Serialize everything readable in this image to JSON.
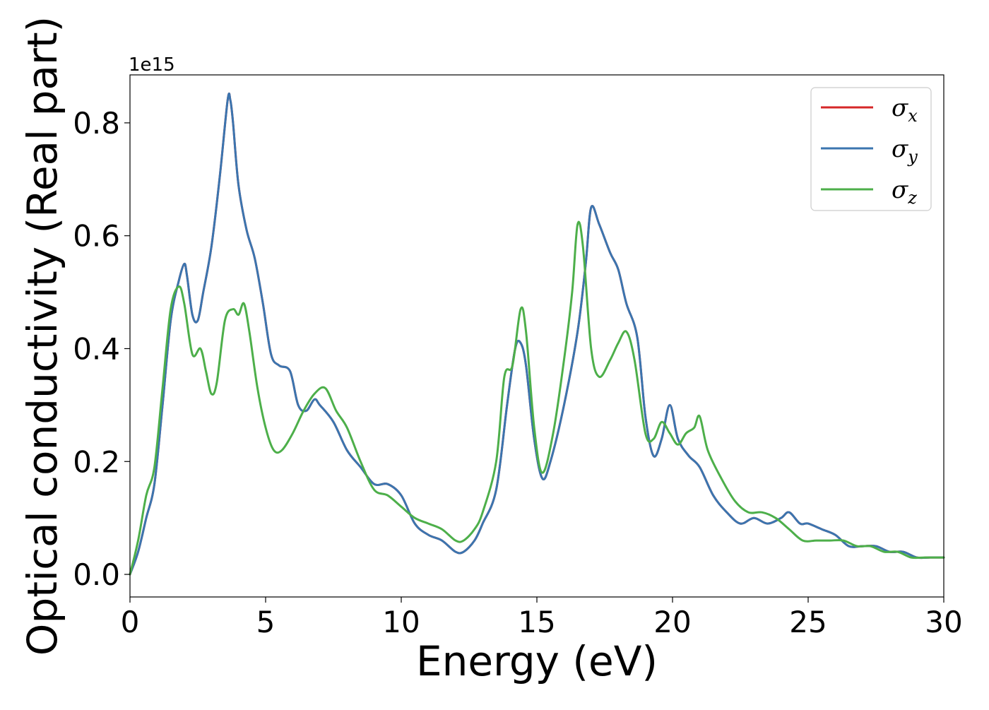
{
  "chart_data": {
    "type": "line",
    "xlabel": "Energy (eV)",
    "ylabel": "Optical conductivity (Real part)",
    "y_offset_text": "1e15",
    "y_multiplier": 1000000000000000.0,
    "xlim": [
      0,
      30
    ],
    "ylim": [
      -0.04,
      0.885
    ],
    "x_ticks": [
      0,
      5,
      10,
      15,
      20,
      25,
      30
    ],
    "x_tick_labels": [
      "0",
      "5",
      "10",
      "15",
      "20",
      "25",
      "30"
    ],
    "y_ticks": [
      0.0,
      0.2,
      0.4,
      0.6,
      0.8
    ],
    "y_tick_labels": [
      "0.0",
      "0.2",
      "0.4",
      "0.6",
      "0.8"
    ],
    "grid": false,
    "legend_position": "top-right",
    "series": [
      {
        "name": "σx",
        "symbol": "σ",
        "subscript": "x",
        "color": "#d62728",
        "x": [
          0,
          0.3,
          0.6,
          0.9,
          1.2,
          1.5,
          1.8,
          2.0,
          2.1,
          2.3,
          2.5,
          2.7,
          3.0,
          3.3,
          3.6,
          3.7,
          3.8,
          4.0,
          4.3,
          4.6,
          4.9,
          5.2,
          5.5,
          5.9,
          6.2,
          6.5,
          6.8,
          7.0,
          7.5,
          8.0,
          8.5,
          9.0,
          9.5,
          10.0,
          10.5,
          11.0,
          11.5,
          12.0,
          12.3,
          12.7,
          13.0,
          13.5,
          13.9,
          14.2,
          14.4,
          14.6,
          14.9,
          15.2,
          15.5,
          16.0,
          16.5,
          16.8,
          17.0,
          17.3,
          17.7,
          18.0,
          18.3,
          18.7,
          19.0,
          19.3,
          19.6,
          19.9,
          20.2,
          20.6,
          21.0,
          21.5,
          22.0,
          22.5,
          23.0,
          23.5,
          24.0,
          24.3,
          24.7,
          25.0,
          25.5,
          26.0,
          26.5,
          27.0,
          27.5,
          28.0,
          28.5,
          29.0,
          29.5,
          30.0
        ],
        "values": [
          0,
          0.04,
          0.1,
          0.16,
          0.3,
          0.45,
          0.52,
          0.55,
          0.53,
          0.46,
          0.45,
          0.5,
          0.58,
          0.7,
          0.84,
          0.84,
          0.8,
          0.69,
          0.61,
          0.56,
          0.48,
          0.39,
          0.37,
          0.36,
          0.3,
          0.29,
          0.31,
          0.3,
          0.27,
          0.22,
          0.19,
          0.16,
          0.16,
          0.14,
          0.09,
          0.07,
          0.06,
          0.04,
          0.04,
          0.06,
          0.09,
          0.15,
          0.3,
          0.4,
          0.41,
          0.37,
          0.24,
          0.17,
          0.2,
          0.3,
          0.43,
          0.55,
          0.65,
          0.62,
          0.57,
          0.54,
          0.48,
          0.42,
          0.28,
          0.21,
          0.24,
          0.3,
          0.24,
          0.21,
          0.19,
          0.14,
          0.11,
          0.09,
          0.1,
          0.09,
          0.1,
          0.11,
          0.09,
          0.09,
          0.08,
          0.07,
          0.05,
          0.05,
          0.05,
          0.04,
          0.04,
          0.03,
          0.03,
          0.03
        ]
      },
      {
        "name": "σy",
        "symbol": "σ",
        "subscript": "y",
        "color": "#3b75af",
        "x": [
          0,
          0.3,
          0.6,
          0.9,
          1.2,
          1.5,
          1.8,
          2.0,
          2.1,
          2.3,
          2.5,
          2.7,
          3.0,
          3.3,
          3.6,
          3.7,
          3.8,
          4.0,
          4.3,
          4.6,
          4.9,
          5.2,
          5.5,
          5.9,
          6.2,
          6.5,
          6.8,
          7.0,
          7.5,
          8.0,
          8.5,
          9.0,
          9.5,
          10.0,
          10.5,
          11.0,
          11.5,
          12.0,
          12.3,
          12.7,
          13.0,
          13.5,
          13.9,
          14.2,
          14.4,
          14.6,
          14.9,
          15.2,
          15.5,
          16.0,
          16.5,
          16.8,
          17.0,
          17.3,
          17.7,
          18.0,
          18.3,
          18.7,
          19.0,
          19.3,
          19.6,
          19.9,
          20.2,
          20.6,
          21.0,
          21.5,
          22.0,
          22.5,
          23.0,
          23.5,
          24.0,
          24.3,
          24.7,
          25.0,
          25.5,
          26.0,
          26.5,
          27.0,
          27.5,
          28.0,
          28.5,
          29.0,
          29.5,
          30.0
        ],
        "values": [
          0,
          0.04,
          0.1,
          0.16,
          0.3,
          0.45,
          0.52,
          0.55,
          0.53,
          0.46,
          0.45,
          0.5,
          0.58,
          0.7,
          0.84,
          0.84,
          0.8,
          0.69,
          0.61,
          0.56,
          0.48,
          0.39,
          0.37,
          0.36,
          0.3,
          0.29,
          0.31,
          0.3,
          0.27,
          0.22,
          0.19,
          0.16,
          0.16,
          0.14,
          0.09,
          0.07,
          0.06,
          0.04,
          0.04,
          0.06,
          0.09,
          0.15,
          0.3,
          0.4,
          0.41,
          0.37,
          0.24,
          0.17,
          0.2,
          0.3,
          0.43,
          0.55,
          0.65,
          0.62,
          0.57,
          0.54,
          0.48,
          0.42,
          0.28,
          0.21,
          0.24,
          0.3,
          0.24,
          0.21,
          0.19,
          0.14,
          0.11,
          0.09,
          0.1,
          0.09,
          0.1,
          0.11,
          0.09,
          0.09,
          0.08,
          0.07,
          0.05,
          0.05,
          0.05,
          0.04,
          0.04,
          0.03,
          0.03,
          0.03
        ]
      },
      {
        "name": "σz",
        "symbol": "σ",
        "subscript": "z",
        "color": "#4daf4a",
        "x": [
          0,
          0.3,
          0.6,
          0.9,
          1.2,
          1.5,
          1.8,
          2.0,
          2.3,
          2.6,
          2.8,
          3.0,
          3.2,
          3.5,
          3.8,
          4.0,
          4.2,
          4.4,
          4.7,
          5.0,
          5.3,
          5.6,
          6.0,
          6.4,
          6.8,
          7.2,
          7.6,
          8.0,
          8.5,
          9.0,
          9.5,
          10.0,
          10.5,
          11.0,
          11.5,
          12.0,
          12.3,
          12.7,
          13.0,
          13.5,
          13.8,
          14.1,
          14.4,
          14.6,
          14.9,
          15.2,
          15.6,
          16.0,
          16.3,
          16.5,
          16.7,
          17.0,
          17.3,
          17.7,
          18.0,
          18.3,
          18.6,
          19.0,
          19.3,
          19.6,
          19.9,
          20.2,
          20.5,
          20.8,
          21.0,
          21.3,
          21.8,
          22.3,
          22.8,
          23.3,
          23.8,
          24.3,
          24.8,
          25.3,
          25.8,
          26.3,
          26.8,
          27.3,
          27.8,
          28.3,
          28.8,
          29.3,
          29.8,
          30.0
        ],
        "values": [
          0,
          0.06,
          0.14,
          0.19,
          0.33,
          0.47,
          0.51,
          0.48,
          0.39,
          0.4,
          0.36,
          0.32,
          0.34,
          0.45,
          0.47,
          0.46,
          0.48,
          0.43,
          0.33,
          0.26,
          0.22,
          0.22,
          0.25,
          0.29,
          0.32,
          0.33,
          0.29,
          0.26,
          0.2,
          0.15,
          0.14,
          0.12,
          0.1,
          0.09,
          0.08,
          0.06,
          0.06,
          0.08,
          0.11,
          0.2,
          0.35,
          0.37,
          0.47,
          0.43,
          0.26,
          0.18,
          0.25,
          0.38,
          0.5,
          0.62,
          0.58,
          0.4,
          0.35,
          0.38,
          0.41,
          0.43,
          0.38,
          0.25,
          0.24,
          0.27,
          0.25,
          0.23,
          0.25,
          0.26,
          0.28,
          0.22,
          0.17,
          0.13,
          0.11,
          0.11,
          0.1,
          0.08,
          0.06,
          0.06,
          0.06,
          0.06,
          0.05,
          0.05,
          0.04,
          0.04,
          0.03,
          0.03,
          0.03,
          0.03
        ]
      }
    ]
  }
}
